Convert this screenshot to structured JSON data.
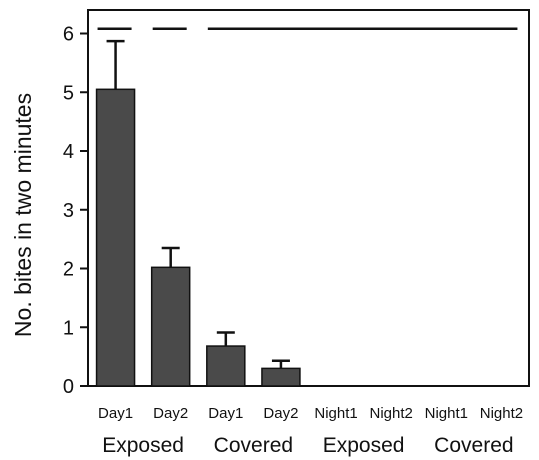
{
  "chart_data": {
    "type": "bar",
    "ylabel": "No. bites in two minutes",
    "ylim": [
      0,
      6.4
    ],
    "yticks": [
      0,
      1,
      2,
      3,
      4,
      5,
      6
    ],
    "categories": [
      "Day1",
      "Day2",
      "Day1",
      "Day2",
      "Night1",
      "Night2",
      "Night1",
      "Night2"
    ],
    "values": [
      5.05,
      2.02,
      0.68,
      0.3,
      0,
      0,
      0,
      0
    ],
    "errors": [
      0.82,
      0.33,
      0.23,
      0.13,
      0,
      0,
      0,
      0
    ],
    "groups": [
      {
        "label": "Exposed",
        "categories": [
          "Day1",
          "Day2"
        ]
      },
      {
        "label": "Covered",
        "categories": [
          "Day1",
          "Day2"
        ]
      },
      {
        "label": "Exposed",
        "categories": [
          "Night1",
          "Night2"
        ]
      },
      {
        "label": "Covered",
        "categories": [
          "Night1",
          "Night2"
        ]
      }
    ],
    "significance_lines": [
      {
        "from": 0,
        "to": 0,
        "y": 6.08
      },
      {
        "from": 1,
        "to": 1,
        "y": 6.08
      },
      {
        "from": 2,
        "to": 7,
        "y": 6.08
      }
    ],
    "colors": {
      "bar": "#4a4a4a",
      "axis": "#111111"
    }
  }
}
